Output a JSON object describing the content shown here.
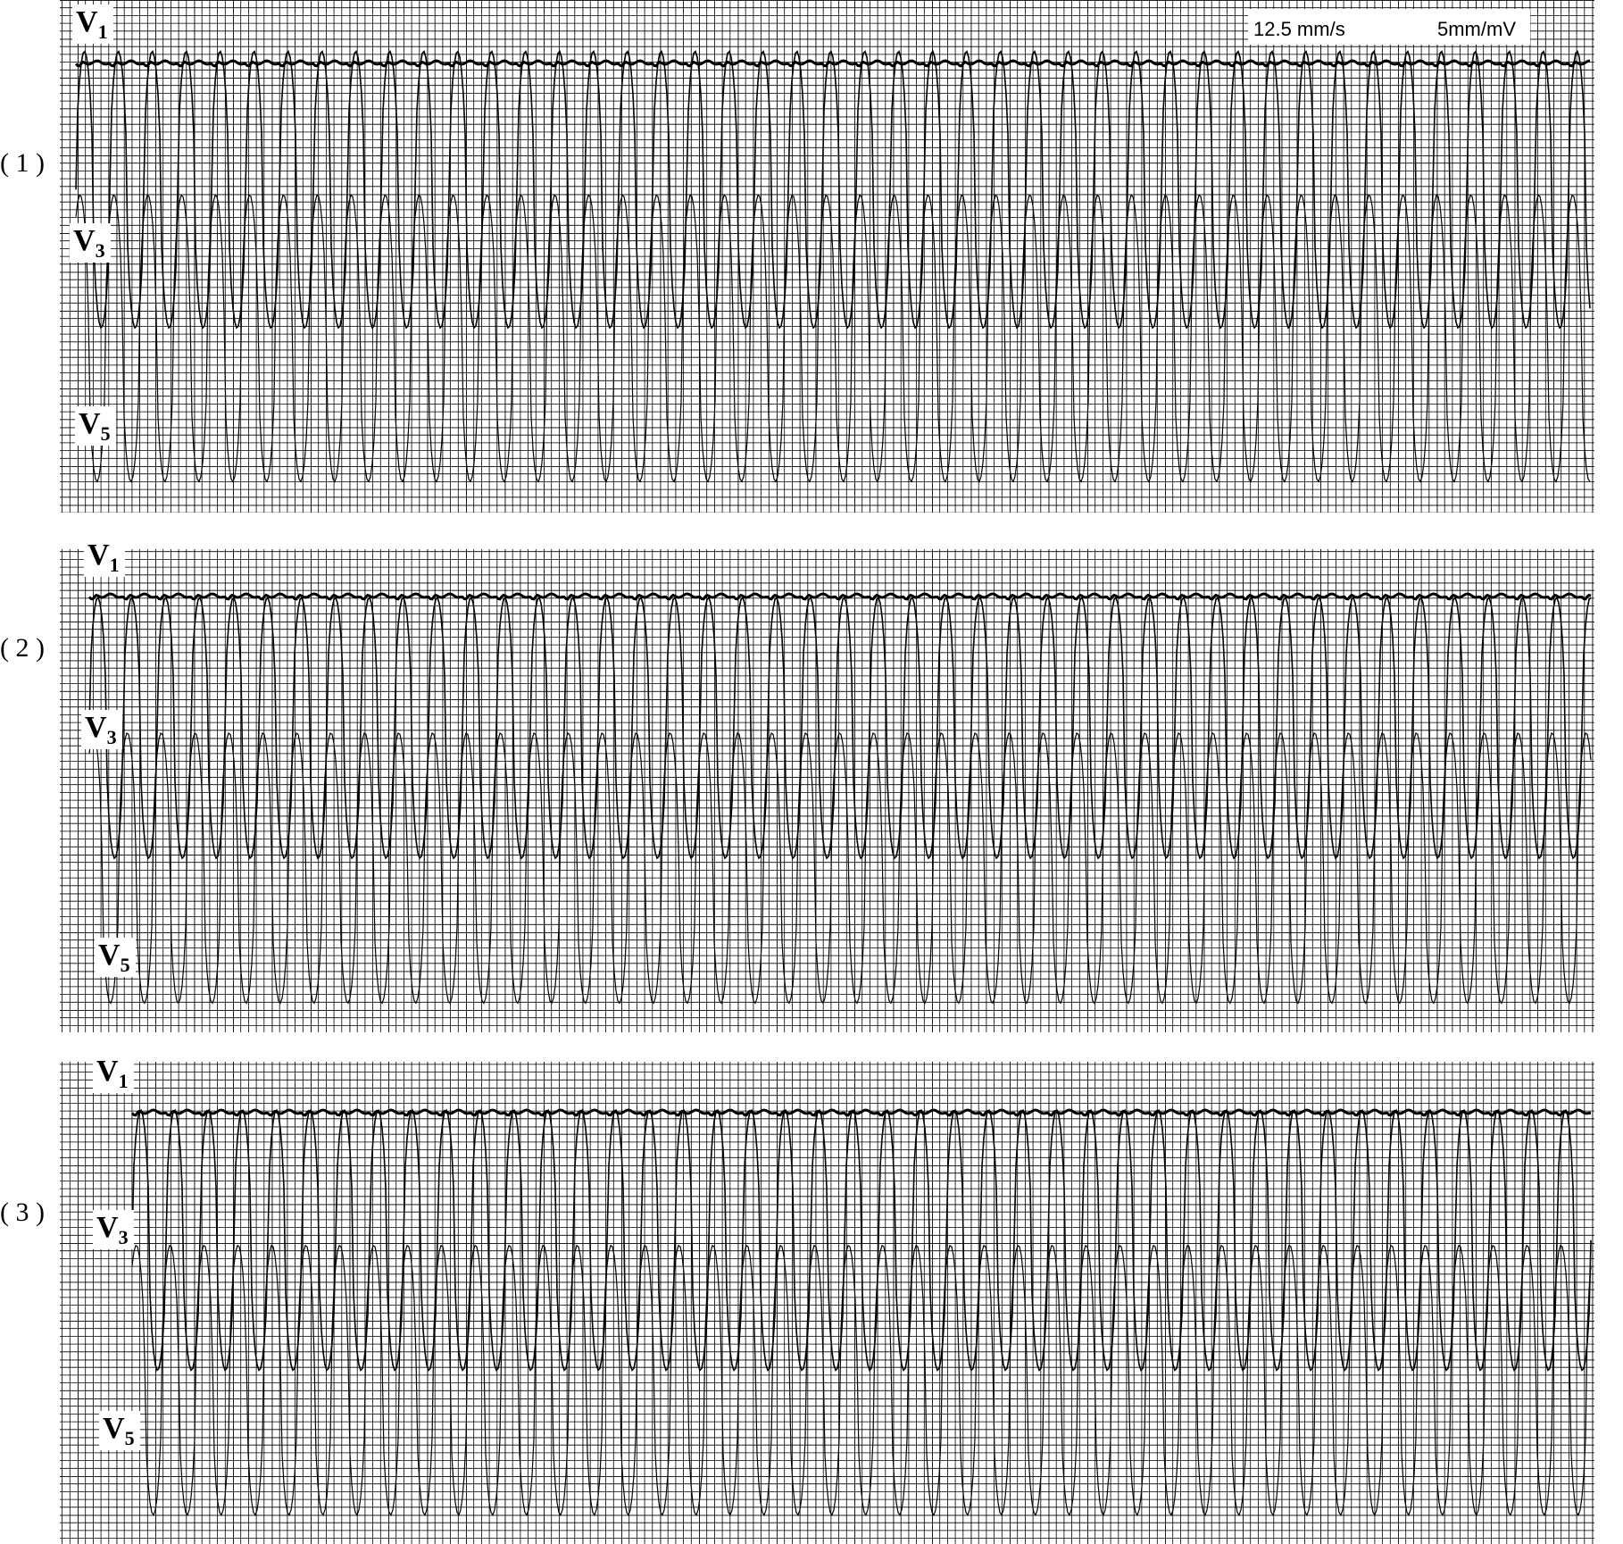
{
  "header": {
    "speed": "12.5  mm/s",
    "gain": "5mm/mV"
  },
  "strips": [
    {
      "label": "( 1 )",
      "leads": [
        {
          "name": "V",
          "sub": "1"
        },
        {
          "name": "V",
          "sub": "3"
        },
        {
          "name": "V",
          "sub": "5"
        }
      ]
    },
    {
      "label": "( 2 )",
      "leads": [
        {
          "name": "V",
          "sub": "1"
        },
        {
          "name": "V",
          "sub": "3"
        },
        {
          "name": "V",
          "sub": "5"
        }
      ]
    },
    {
      "label": "( 3 )",
      "leads": [
        {
          "name": "V",
          "sub": "1"
        },
        {
          "name": "V",
          "sub": "3"
        },
        {
          "name": "V",
          "sub": "5"
        }
      ]
    }
  ]
}
